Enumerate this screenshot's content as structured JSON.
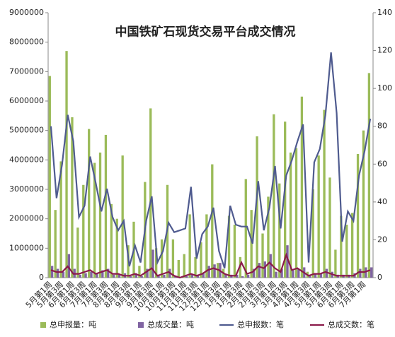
{
  "chart_data": {
    "type": "bar-line",
    "title": "中国铁矿石现货交易平台成交情况",
    "categories": [
      "5月第1周",
      null,
      "5月第3周",
      null,
      "6月第1周",
      null,
      "6月第3周",
      null,
      "7月第1周",
      null,
      "7月第3周",
      null,
      "8月第1周",
      null,
      "8月第3周",
      null,
      "9月第1周",
      null,
      "9月第3周",
      null,
      "10月第1周",
      null,
      "10月第3周",
      null,
      "11月第1周",
      null,
      "11月第3周",
      null,
      "12月第1周",
      null,
      "12月第3周",
      null,
      "1月第1周",
      null,
      "1月第3周",
      null,
      "2月第1周",
      null,
      "2月第3周",
      null,
      "3月第1周",
      null,
      "3月第3周",
      null,
      "4月第1周",
      null,
      "4月第3周",
      null,
      "5月第1周",
      null,
      "5月第3周",
      null,
      "6月第1周",
      null,
      "6月第3周",
      null,
      "7月第1周",
      null
    ],
    "series": [
      {
        "name": "总申报量：吨",
        "color": "#9bbb59",
        "kind": "bar",
        "values": [
          6850000,
          2300000,
          3950000,
          7700000,
          5450000,
          1700000,
          3150000,
          5050000,
          3900000,
          4250000,
          4850000,
          2500000,
          2000000,
          4150000,
          1100000,
          1900000,
          400000,
          3250000,
          5750000,
          1000000,
          1300000,
          3150000,
          1300000,
          600000,
          800000,
          2150000,
          700000,
          1200000,
          2150000,
          3850000,
          500000,
          300000,
          2100000,
          1800000,
          700000,
          3350000,
          2300000,
          4800000,
          1500000,
          2750000,
          5550000,
          3200000,
          5300000,
          4250000,
          4400000,
          6150000,
          200000,
          3000000,
          4150000,
          5700000,
          3400000,
          950000,
          2100000,
          1800000,
          2200000,
          4200000,
          5000000,
          6950000
        ]
      },
      {
        "name": "总成交量：吨",
        "color": "#8064a2",
        "kind": "bar",
        "values": [
          400000,
          300000,
          200000,
          800000,
          300000,
          100000,
          150000,
          200000,
          150000,
          250000,
          300000,
          100000,
          100000,
          150000,
          50000,
          150000,
          50000,
          300000,
          950000,
          100000,
          100000,
          300000,
          50000,
          20000,
          50000,
          100000,
          100000,
          150000,
          400000,
          450000,
          500000,
          100000,
          100000,
          100000,
          50000,
          100000,
          300000,
          500000,
          550000,
          800000,
          200000,
          300000,
          1100000,
          250000,
          300000,
          350000,
          100000,
          150000,
          150000,
          300000,
          200000,
          100000,
          100000,
          100000,
          150000,
          300000,
          350000,
          350000
        ]
      },
      {
        "name": "总申报数：笔",
        "color": "#4f5b8f",
        "kind": "line",
        "axis": "y2",
        "values": [
          80,
          42,
          60,
          86,
          72,
          32,
          38,
          64,
          50,
          35,
          47,
          32,
          25,
          30,
          6,
          17,
          8,
          30,
          43,
          8,
          14,
          29,
          24,
          25,
          26,
          48,
          10,
          23,
          27,
          37,
          14,
          5,
          38,
          28,
          27,
          27,
          18,
          51,
          25,
          37,
          59,
          26,
          54,
          62,
          72,
          81,
          8,
          61,
          68,
          86,
          119,
          87,
          19,
          35,
          30,
          54,
          67,
          84
        ]
      },
      {
        "name": "总成交数：笔",
        "color": "#8b1a4a",
        "kind": "line",
        "axis": "y2",
        "values": [
          4,
          3,
          3,
          6,
          2,
          2,
          3,
          4,
          2,
          3,
          4,
          2,
          2,
          1,
          1,
          2,
          1,
          3,
          5,
          1,
          2,
          3,
          1,
          0,
          1,
          2,
          1,
          2,
          4,
          5,
          4,
          2,
          1,
          1,
          8,
          2,
          3,
          6,
          5,
          8,
          5,
          3,
          12,
          4,
          5,
          3,
          1,
          2,
          2,
          3,
          2,
          1,
          1,
          1,
          1,
          3,
          3,
          4
        ]
      }
    ],
    "ylim": [
      0,
      9000000
    ],
    "yticks": [
      0,
      1000000,
      2000000,
      3000000,
      4000000,
      5000000,
      6000000,
      7000000,
      8000000,
      9000000
    ],
    "y2lim": [
      0,
      140
    ],
    "y2ticks": [
      0,
      20,
      40,
      60,
      80,
      100,
      120,
      140
    ],
    "legend": "bottom"
  }
}
